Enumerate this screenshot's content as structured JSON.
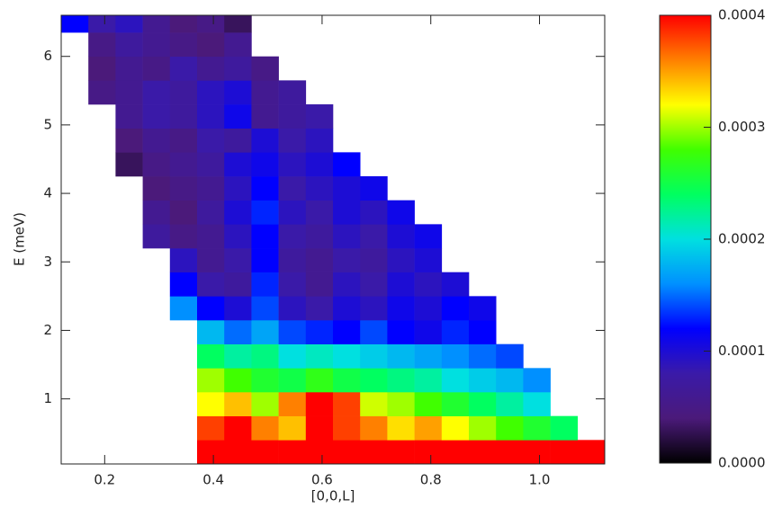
{
  "chart_data": {
    "type": "heatmap",
    "xlabel": "[0,0,L]",
    "ylabel": "E (meV)",
    "xlim": [
      0.12,
      1.12
    ],
    "ylim": [
      0.05,
      6.6
    ],
    "xticks": [
      0.2,
      0.4,
      0.6,
      0.8,
      {
        "value": 1.0,
        "label": "1.0"
      }
    ],
    "yticks": [
      1,
      2,
      3,
      4,
      5,
      6
    ],
    "clim": [
      0,
      0.0004
    ],
    "cticks": [
      {
        "value": 0,
        "label": "0.0000"
      },
      0.0001,
      0.0002,
      0.0003,
      0.0004
    ],
    "colormap": [
      "#000000",
      "#4b1a7a",
      "#3a1aa8",
      "#0000ff",
      "#0090ff",
      "#00e0e0",
      "#00ff60",
      "#40ff00",
      "#ffff00",
      "#ff8000",
      "#ff0000"
    ],
    "xbins": [
      0.12,
      0.17,
      0.22,
      0.27,
      0.32,
      0.37,
      0.42,
      0.47,
      0.52,
      0.57,
      0.62,
      0.67,
      0.72,
      0.77,
      0.82,
      0.87,
      0.92,
      0.97,
      1.02,
      1.07,
      1.12
    ],
    "ybins": [
      0.05,
      0.4,
      0.75,
      1.1,
      1.45,
      1.8,
      2.15,
      2.5,
      2.85,
      3.2,
      3.55,
      3.9,
      4.25,
      4.6,
      4.95,
      5.3,
      5.65,
      6.0,
      6.35,
      6.6
    ],
    "z": [
      [
        null,
        null,
        null,
        null,
        null,
        0.0004,
        0.0004,
        0.0004,
        0.0004,
        0.0004,
        0.0004,
        0.0004,
        0.0004,
        0.0004,
        0.0004,
        0.0004,
        0.0004,
        0.0004,
        0.0004,
        0.0004
      ],
      [
        null,
        null,
        null,
        null,
        null,
        0.00038,
        0.0004,
        0.00036,
        0.00034,
        0.0004,
        0.00038,
        0.00036,
        0.00033,
        0.00035,
        0.00032,
        0.0003,
        0.00028,
        0.00026,
        0.00024,
        null
      ],
      [
        null,
        null,
        null,
        null,
        null,
        0.00032,
        0.00034,
        0.0003,
        0.00036,
        0.0004,
        0.00038,
        0.00031,
        0.0003,
        0.00028,
        0.00026,
        0.00024,
        0.00022,
        0.0002,
        null,
        null
      ],
      [
        null,
        null,
        null,
        null,
        null,
        0.0003,
        0.00028,
        0.00026,
        0.00025,
        0.00027,
        0.00025,
        0.00024,
        0.00023,
        0.00022,
        0.0002,
        0.00019,
        0.00018,
        0.00016,
        null,
        null
      ],
      [
        null,
        null,
        null,
        null,
        null,
        0.00024,
        0.00022,
        0.00023,
        0.0002,
        0.00021,
        0.0002,
        0.00019,
        0.00018,
        0.00017,
        0.00016,
        0.00015,
        0.00014,
        null,
        null,
        null
      ],
      [
        null,
        null,
        null,
        null,
        null,
        0.00018,
        0.00015,
        0.00017,
        0.00014,
        0.00013,
        0.00012,
        0.00014,
        0.00012,
        0.00011,
        0.00013,
        0.00012,
        null,
        null,
        null,
        null
      ],
      [
        null,
        null,
        null,
        null,
        0.00016,
        0.00012,
        0.0001,
        0.00014,
        9e-05,
        8e-05,
        0.0001,
        9e-05,
        0.00011,
        0.0001,
        0.00012,
        0.00011,
        null,
        null,
        null,
        null
      ],
      [
        null,
        null,
        null,
        null,
        0.00012,
        8e-05,
        7e-05,
        0.00013,
        8e-05,
        6e-05,
        9e-05,
        8e-05,
        0.0001,
        9e-05,
        0.0001,
        null,
        null,
        null,
        null,
        null
      ],
      [
        null,
        null,
        null,
        null,
        9e-05,
        6e-05,
        8e-05,
        0.00012,
        7e-05,
        6e-05,
        8e-05,
        7e-05,
        9e-05,
        0.0001,
        null,
        null,
        null,
        null,
        null,
        null
      ],
      [
        null,
        null,
        null,
        7e-05,
        5e-05,
        6e-05,
        9e-05,
        0.00012,
        8e-05,
        7e-05,
        9e-05,
        8e-05,
        0.0001,
        0.00011,
        null,
        null,
        null,
        null,
        null,
        null
      ],
      [
        null,
        null,
        null,
        6e-05,
        4e-05,
        7e-05,
        0.0001,
        0.00013,
        9e-05,
        8e-05,
        0.0001,
        9e-05,
        0.00011,
        null,
        null,
        null,
        null,
        null,
        null,
        null
      ],
      [
        null,
        null,
        null,
        4e-05,
        5e-05,
        6e-05,
        9e-05,
        0.00012,
        8e-05,
        9e-05,
        0.0001,
        0.00011,
        null,
        null,
        null,
        null,
        null,
        null,
        null,
        null
      ],
      [
        null,
        null,
        3e-05,
        5e-05,
        6e-05,
        7e-05,
        0.0001,
        0.00011,
        9e-05,
        0.0001,
        0.00012,
        null,
        null,
        null,
        null,
        null,
        null,
        null,
        null,
        null
      ],
      [
        null,
        null,
        4e-05,
        6e-05,
        5e-05,
        8e-05,
        7e-05,
        0.0001,
        8e-05,
        9e-05,
        null,
        null,
        null,
        null,
        null,
        null,
        null,
        null,
        null,
        null
      ],
      [
        null,
        null,
        6e-05,
        8e-05,
        7e-05,
        9e-05,
        0.00011,
        6e-05,
        7e-05,
        8e-05,
        null,
        null,
        null,
        null,
        null,
        null,
        null,
        null,
        null,
        null
      ],
      [
        null,
        5e-05,
        6e-05,
        8e-05,
        7e-05,
        9e-05,
        0.0001,
        6e-05,
        7e-05,
        null,
        null,
        null,
        null,
        null,
        null,
        null,
        null,
        null,
        null,
        null
      ],
      [
        null,
        4e-05,
        6e-05,
        5e-05,
        8e-05,
        6e-05,
        7e-05,
        5e-05,
        null,
        null,
        null,
        null,
        null,
        null,
        null,
        null,
        null,
        null,
        null,
        null
      ],
      [
        null,
        5e-05,
        7e-05,
        6e-05,
        5e-05,
        4e-05,
        6e-05,
        null,
        null,
        null,
        null,
        null,
        null,
        null,
        null,
        null,
        null,
        null,
        null,
        null
      ],
      [
        0.00012,
        8e-05,
        9e-05,
        6e-05,
        4e-05,
        5e-05,
        3e-05,
        null,
        null,
        null,
        null,
        null,
        null,
        null,
        null,
        null,
        null,
        null,
        null,
        null
      ]
    ]
  }
}
